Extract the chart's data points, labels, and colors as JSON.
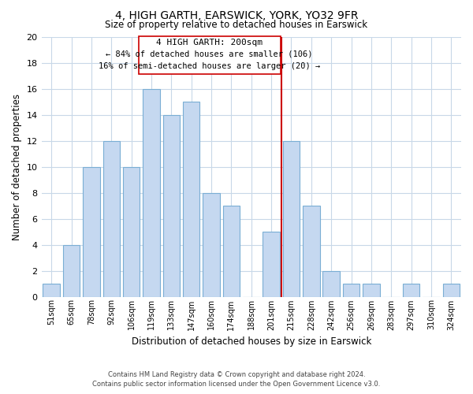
{
  "title": "4, HIGH GARTH, EARSWICK, YORK, YO32 9FR",
  "subtitle": "Size of property relative to detached houses in Earswick",
  "xlabel": "Distribution of detached houses by size in Earswick",
  "ylabel": "Number of detached properties",
  "bar_labels": [
    "51sqm",
    "65sqm",
    "78sqm",
    "92sqm",
    "106sqm",
    "119sqm",
    "133sqm",
    "147sqm",
    "160sqm",
    "174sqm",
    "188sqm",
    "201sqm",
    "215sqm",
    "228sqm",
    "242sqm",
    "256sqm",
    "269sqm",
    "283sqm",
    "297sqm",
    "310sqm",
    "324sqm"
  ],
  "bar_values": [
    1,
    4,
    10,
    12,
    10,
    16,
    14,
    15,
    8,
    7,
    0,
    5,
    12,
    7,
    2,
    1,
    1,
    0,
    1,
    0,
    1
  ],
  "bar_color": "#c5d8f0",
  "bar_edge_color": "#7aaed4",
  "vline_x": 11.5,
  "vline_color": "#cc0000",
  "ylim": [
    0,
    20
  ],
  "yticks": [
    0,
    2,
    4,
    6,
    8,
    10,
    12,
    14,
    16,
    18,
    20
  ],
  "annotation_title": "4 HIGH GARTH: 200sqm",
  "annotation_line1": "← 84% of detached houses are smaller (106)",
  "annotation_line2": "16% of semi-detached houses are larger (20) →",
  "footnote1": "Contains HM Land Registry data © Crown copyright and database right 2024.",
  "footnote2": "Contains public sector information licensed under the Open Government Licence v3.0.",
  "background_color": "#ffffff",
  "grid_color": "#c8d8e8"
}
